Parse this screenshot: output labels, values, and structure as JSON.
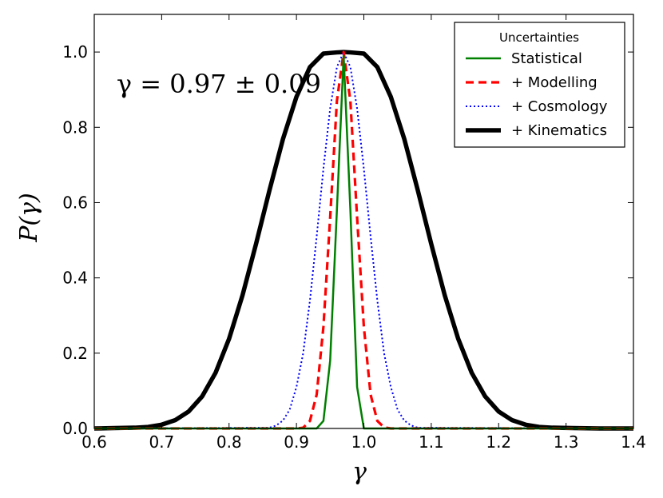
{
  "chart_data": {
    "type": "line",
    "title": "",
    "xlabel": "γ",
    "ylabel": "P(γ)",
    "xlim": [
      0.6,
      1.4
    ],
    "ylim": [
      0.0,
      1.1
    ],
    "xticks": [
      0.6,
      0.7,
      0.8,
      0.9,
      1.0,
      1.1,
      1.2,
      1.3,
      1.4
    ],
    "xtick_labels": [
      "0.6",
      "0.7",
      "0.8",
      "0.9",
      "1.0",
      "1.1",
      "1.2",
      "1.3",
      "1.4"
    ],
    "yticks": [
      0.0,
      0.2,
      0.4,
      0.6,
      0.8,
      1.0
    ],
    "ytick_labels": [
      "0.0",
      "0.2",
      "0.4",
      "0.6",
      "0.8",
      "1.0"
    ],
    "annotation": "γ = 0.97 ± 0.09",
    "legend": {
      "title": "Uncertainties",
      "placement": "top-right"
    },
    "series": [
      {
        "name": "Statistical",
        "color": "#008000",
        "style": "solid",
        "x": [
          0.6,
          0.93,
          0.94,
          0.95,
          0.96,
          0.97,
          0.98,
          0.99,
          1.0,
          1.4
        ],
        "y": [
          0.0,
          0.0,
          0.02,
          0.18,
          0.58,
          0.99,
          0.58,
          0.11,
          0.0,
          0.0
        ]
      },
      {
        "name": "+ Modelling",
        "color": "#ff0000",
        "style": "dashed",
        "x": [
          0.6,
          0.9,
          0.91,
          0.92,
          0.93,
          0.94,
          0.95,
          0.96,
          0.97,
          0.98,
          0.99,
          1.0,
          1.01,
          1.02,
          1.03,
          1.04,
          1.4
        ],
        "y": [
          0.0,
          0.0,
          0.002,
          0.02,
          0.09,
          0.27,
          0.56,
          0.87,
          1.0,
          0.87,
          0.56,
          0.27,
          0.09,
          0.02,
          0.003,
          0.0,
          0.0
        ]
      },
      {
        "name": "+ Cosmology",
        "color": "#0000ff",
        "style": "dotted",
        "x": [
          0.6,
          0.86,
          0.87,
          0.88,
          0.89,
          0.9,
          0.91,
          0.92,
          0.93,
          0.94,
          0.95,
          0.96,
          0.97,
          0.98,
          0.99,
          1.0,
          1.01,
          1.02,
          1.03,
          1.04,
          1.05,
          1.06,
          1.07,
          1.08,
          1.4
        ],
        "y": [
          0.0,
          0.002,
          0.008,
          0.021,
          0.05,
          0.11,
          0.2,
          0.34,
          0.51,
          0.69,
          0.85,
          0.96,
          1.0,
          0.96,
          0.85,
          0.69,
          0.51,
          0.34,
          0.2,
          0.11,
          0.05,
          0.021,
          0.008,
          0.002,
          0.0
        ]
      },
      {
        "name": "+ Kinematics",
        "color": "#000000",
        "style": "solid-thick",
        "x": [
          0.6,
          0.63,
          0.66,
          0.68,
          0.7,
          0.72,
          0.74,
          0.76,
          0.78,
          0.8,
          0.82,
          0.84,
          0.86,
          0.88,
          0.9,
          0.92,
          0.94,
          0.96,
          0.97,
          0.98,
          1.0,
          1.02,
          1.04,
          1.06,
          1.08,
          1.1,
          1.12,
          1.14,
          1.16,
          1.18,
          1.2,
          1.22,
          1.24,
          1.26,
          1.28,
          1.31,
          1.35,
          1.4
        ],
        "y": [
          0.0,
          0.001,
          0.002,
          0.004,
          0.01,
          0.022,
          0.045,
          0.085,
          0.148,
          0.238,
          0.354,
          0.49,
          0.633,
          0.769,
          0.881,
          0.96,
          0.996,
          0.999,
          1.0,
          0.999,
          0.996,
          0.96,
          0.881,
          0.769,
          0.633,
          0.49,
          0.354,
          0.238,
          0.148,
          0.085,
          0.045,
          0.022,
          0.01,
          0.004,
          0.002,
          0.001,
          0.0,
          0.0
        ]
      }
    ]
  }
}
